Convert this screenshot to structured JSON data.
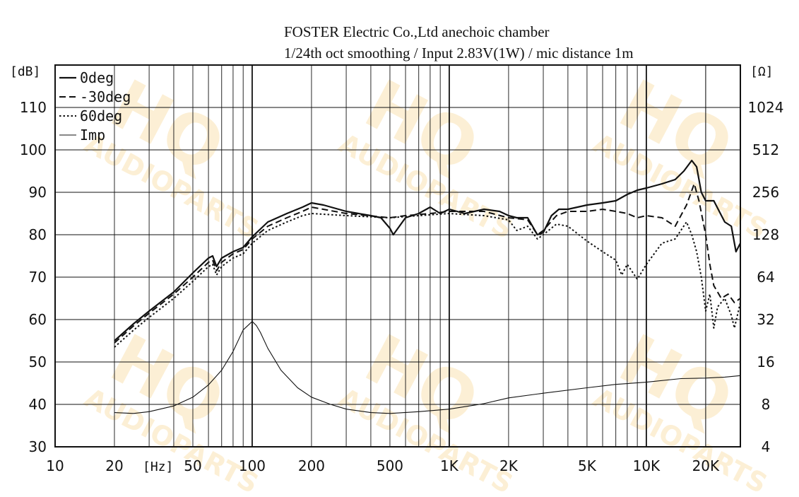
{
  "chart_data": {
    "type": "line",
    "title": "FOSTER Electric Co.,Ltd  anechoic chamber",
    "subtitle": "1/24th oct smoothing / Input 2.83V(1W) / mic distance 1m",
    "x_axis": {
      "scale": "log",
      "range": [
        10,
        30000
      ],
      "unit_label": "[Hz]",
      "ticks": [
        {
          "value": 10,
          "label": "10"
        },
        {
          "value": 20,
          "label": "20"
        },
        {
          "value": 50,
          "label": "50"
        },
        {
          "value": 100,
          "label": "100"
        },
        {
          "value": 200,
          "label": "200"
        },
        {
          "value": 500,
          "label": "500"
        },
        {
          "value": 1000,
          "label": "1K"
        },
        {
          "value": 2000,
          "label": "2K"
        },
        {
          "value": 5000,
          "label": "5K"
        },
        {
          "value": 10000,
          "label": "10K"
        },
        {
          "value": 20000,
          "label": "20K"
        }
      ]
    },
    "y_left": {
      "unit_label": "[dB]",
      "range": [
        30,
        120
      ],
      "ticks": [
        {
          "value": 30,
          "label": "30"
        },
        {
          "value": 40,
          "label": "40"
        },
        {
          "value": 50,
          "label": "50"
        },
        {
          "value": 60,
          "label": "60"
        },
        {
          "value": 70,
          "label": "70"
        },
        {
          "value": 80,
          "label": "80"
        },
        {
          "value": 90,
          "label": "90"
        },
        {
          "value": 100,
          "label": "100"
        },
        {
          "value": 110,
          "label": "110"
        }
      ]
    },
    "y_right": {
      "unit_label": "[Ω]",
      "scale": "log2",
      "ticks": [
        {
          "value": 4,
          "label": "4"
        },
        {
          "value": 8,
          "label": "8"
        },
        {
          "value": 16,
          "label": "16"
        },
        {
          "value": 32,
          "label": "32"
        },
        {
          "value": 64,
          "label": "64"
        },
        {
          "value": 128,
          "label": "128"
        },
        {
          "value": 256,
          "label": "256"
        },
        {
          "value": 512,
          "label": "512"
        },
        {
          "value": 1024,
          "label": "1024"
        }
      ]
    },
    "grid": true,
    "legend_position": "top-left",
    "series": [
      {
        "name": "0deg",
        "axis": "left",
        "style": "solid",
        "points": [
          [
            20,
            55
          ],
          [
            25,
            59
          ],
          [
            30,
            62
          ],
          [
            40,
            66.5
          ],
          [
            50,
            71
          ],
          [
            60,
            74.5
          ],
          [
            63,
            75
          ],
          [
            66,
            72.5
          ],
          [
            70,
            74.5
          ],
          [
            80,
            76
          ],
          [
            90,
            77
          ],
          [
            100,
            79.5
          ],
          [
            120,
            83
          ],
          [
            150,
            85
          ],
          [
            180,
            86.5
          ],
          [
            200,
            87.5
          ],
          [
            230,
            87
          ],
          [
            300,
            85.5
          ],
          [
            400,
            84.5
          ],
          [
            450,
            84
          ],
          [
            500,
            81.5
          ],
          [
            520,
            80
          ],
          [
            600,
            84
          ],
          [
            700,
            85
          ],
          [
            800,
            86.5
          ],
          [
            900,
            85
          ],
          [
            1000,
            86
          ],
          [
            1200,
            85
          ],
          [
            1500,
            86
          ],
          [
            1800,
            85.5
          ],
          [
            2000,
            84.5
          ],
          [
            2200,
            84
          ],
          [
            2500,
            84
          ],
          [
            2800,
            80
          ],
          [
            3000,
            80.5
          ],
          [
            3300,
            84.5
          ],
          [
            3600,
            86
          ],
          [
            4000,
            86
          ],
          [
            5000,
            87
          ],
          [
            6000,
            87.5
          ],
          [
            7000,
            88
          ],
          [
            8000,
            89.5
          ],
          [
            9000,
            90.5
          ],
          [
            10000,
            91
          ],
          [
            12000,
            92
          ],
          [
            14000,
            93
          ],
          [
            15500,
            95
          ],
          [
            17000,
            97.5
          ],
          [
            18000,
            96
          ],
          [
            19000,
            90
          ],
          [
            20000,
            88
          ],
          [
            22000,
            88
          ],
          [
            25000,
            83
          ],
          [
            27000,
            82
          ],
          [
            28500,
            76
          ],
          [
            30000,
            78
          ]
        ]
      },
      {
        "name": "-30deg",
        "axis": "left",
        "style": "dashed",
        "points": [
          [
            20,
            54.5
          ],
          [
            25,
            58.5
          ],
          [
            30,
            61.5
          ],
          [
            40,
            66
          ],
          [
            50,
            70
          ],
          [
            60,
            73.5
          ],
          [
            63,
            74
          ],
          [
            66,
            71.5
          ],
          [
            70,
            73.5
          ],
          [
            80,
            75.5
          ],
          [
            90,
            76.5
          ],
          [
            100,
            79
          ],
          [
            120,
            82
          ],
          [
            150,
            84
          ],
          [
            180,
            85.5
          ],
          [
            200,
            86.5
          ],
          [
            300,
            85
          ],
          [
            500,
            84
          ],
          [
            600,
            84.5
          ],
          [
            800,
            85
          ],
          [
            1000,
            85.5
          ],
          [
            1500,
            85.5
          ],
          [
            2000,
            84
          ],
          [
            2500,
            83.5
          ],
          [
            2800,
            80
          ],
          [
            3000,
            81
          ],
          [
            3500,
            84.5
          ],
          [
            4000,
            85.5
          ],
          [
            5000,
            85.5
          ],
          [
            6000,
            86
          ],
          [
            7000,
            85.5
          ],
          [
            8000,
            85
          ],
          [
            9000,
            84
          ],
          [
            10000,
            84.5
          ],
          [
            12000,
            84
          ],
          [
            14000,
            82
          ],
          [
            16000,
            87
          ],
          [
            17500,
            92
          ],
          [
            18500,
            88
          ],
          [
            20000,
            80
          ],
          [
            21000,
            73
          ],
          [
            22000,
            68
          ],
          [
            24000,
            65
          ],
          [
            26000,
            66
          ],
          [
            28000,
            64
          ],
          [
            30000,
            65
          ]
        ]
      },
      {
        "name": "60deg",
        "axis": "left",
        "style": "dotted",
        "points": [
          [
            20,
            53.5
          ],
          [
            25,
            57.5
          ],
          [
            30,
            60.5
          ],
          [
            40,
            65
          ],
          [
            50,
            69
          ],
          [
            60,
            72.5
          ],
          [
            63,
            73
          ],
          [
            66,
            70.5
          ],
          [
            70,
            72.5
          ],
          [
            80,
            74.5
          ],
          [
            90,
            75.5
          ],
          [
            100,
            78
          ],
          [
            120,
            81
          ],
          [
            150,
            83
          ],
          [
            180,
            84.5
          ],
          [
            200,
            85
          ],
          [
            300,
            84.5
          ],
          [
            500,
            84
          ],
          [
            700,
            84.5
          ],
          [
            1000,
            85
          ],
          [
            1500,
            84.5
          ],
          [
            2000,
            83.5
          ],
          [
            2200,
            81
          ],
          [
            2500,
            82
          ],
          [
            2800,
            79
          ],
          [
            3000,
            80
          ],
          [
            3500,
            82.5
          ],
          [
            4000,
            82
          ],
          [
            5000,
            78.5
          ],
          [
            6000,
            76
          ],
          [
            7000,
            74
          ],
          [
            7500,
            70.5
          ],
          [
            8000,
            73
          ],
          [
            9000,
            69.5
          ],
          [
            10000,
            73
          ],
          [
            12000,
            78
          ],
          [
            14000,
            79
          ],
          [
            16000,
            83
          ],
          [
            17000,
            80
          ],
          [
            18000,
            76
          ],
          [
            19000,
            70
          ],
          [
            20000,
            62
          ],
          [
            21000,
            66
          ],
          [
            22000,
            58
          ],
          [
            23000,
            63
          ],
          [
            25000,
            65
          ],
          [
            27000,
            61
          ],
          [
            28000,
            58
          ],
          [
            30000,
            64
          ]
        ]
      },
      {
        "name": "Imp",
        "axis": "right",
        "style": "thin",
        "points": [
          [
            20,
            7
          ],
          [
            25,
            6.9
          ],
          [
            30,
            7.1
          ],
          [
            40,
            7.8
          ],
          [
            50,
            9
          ],
          [
            60,
            11
          ],
          [
            70,
            14
          ],
          [
            80,
            19
          ],
          [
            90,
            27
          ],
          [
            100,
            31
          ],
          [
            105,
            29
          ],
          [
            110,
            26
          ],
          [
            120,
            20
          ],
          [
            140,
            14
          ],
          [
            170,
            10.5
          ],
          [
            200,
            9
          ],
          [
            250,
            8
          ],
          [
            300,
            7.4
          ],
          [
            400,
            7
          ],
          [
            500,
            6.9
          ],
          [
            700,
            7.1
          ],
          [
            1000,
            7.4
          ],
          [
            1500,
            8.1
          ],
          [
            2000,
            8.9
          ],
          [
            3000,
            9.6
          ],
          [
            5000,
            10.5
          ],
          [
            7000,
            11.1
          ],
          [
            10000,
            11.5
          ],
          [
            15000,
            12.2
          ],
          [
            20000,
            12.3
          ],
          [
            25000,
            12.5
          ],
          [
            30000,
            12.8
          ]
        ]
      }
    ]
  },
  "watermark": {
    "text_main": "HQ",
    "text_sub": "AUDIOPARTS",
    "color": "#f5c76a"
  }
}
